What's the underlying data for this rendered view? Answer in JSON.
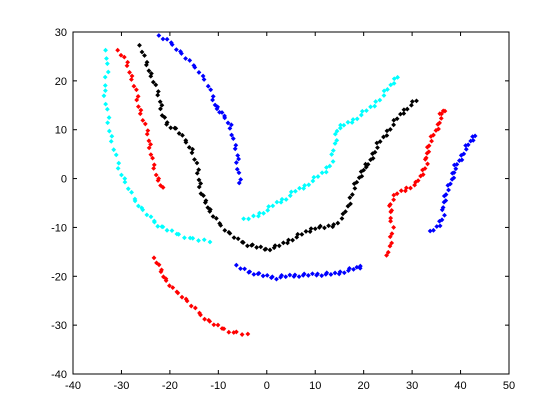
{
  "chart_data": {
    "type": "scatter",
    "title": "",
    "xlabel": "",
    "ylabel": "",
    "xlim": [
      -40,
      50
    ],
    "ylim": [
      -40,
      30
    ],
    "xticks": [
      -40,
      -30,
      -20,
      -10,
      0,
      10,
      20,
      30,
      40,
      50
    ],
    "yticks": [
      -40,
      -30,
      -20,
      -10,
      0,
      10,
      20,
      30
    ],
    "grid": false,
    "legend": "none",
    "marker": "diamond",
    "series": [
      {
        "color": "#00ffff",
        "points": [
          [
            -33,
            26
          ],
          [
            -33,
            22
          ],
          [
            -33.5,
            18
          ],
          [
            -33,
            14
          ],
          [
            -32.5,
            10
          ],
          [
            -31.5,
            6
          ],
          [
            -30.5,
            2
          ],
          [
            -29,
            -1
          ],
          [
            -27.5,
            -4
          ],
          [
            -26,
            -6
          ],
          [
            -24,
            -8
          ],
          [
            -22.5,
            -9.5
          ],
          [
            -20.5,
            -10.5
          ],
          [
            -18,
            -11.5
          ],
          [
            -15,
            -12.5
          ],
          [
            -12,
            -12.8
          ]
        ]
      },
      {
        "color": "#00ffff",
        "points": [
          [
            -4.5,
            -8.5
          ],
          [
            -2,
            -7.5
          ],
          [
            0,
            -6.5
          ],
          [
            2,
            -5
          ],
          [
            4,
            -4
          ],
          [
            6,
            -2.5
          ],
          [
            8,
            -1.5
          ],
          [
            10,
            0
          ],
          [
            12,
            1.5
          ],
          [
            13.5,
            3.5
          ],
          [
            14,
            7
          ],
          [
            14.5,
            10
          ],
          [
            16,
            11
          ],
          [
            18,
            12
          ],
          [
            20,
            13.5
          ],
          [
            22,
            15
          ],
          [
            24,
            17
          ],
          [
            25.5,
            19
          ],
          [
            27,
            21
          ]
        ]
      },
      {
        "color": "#ff0000",
        "points": [
          [
            -30.5,
            26
          ],
          [
            -29,
            24
          ],
          [
            -28,
            21
          ],
          [
            -27,
            18
          ],
          [
            -26.5,
            15
          ],
          [
            -25.5,
            12
          ],
          [
            -24.5,
            9
          ],
          [
            -24,
            6
          ],
          [
            -23.5,
            3
          ],
          [
            -22.5,
            0
          ],
          [
            -21.5,
            -2
          ]
        ]
      },
      {
        "color": "#ff0000",
        "points": [
          [
            -23,
            -16.5
          ],
          [
            -22,
            -18.5
          ],
          [
            -21,
            -20.5
          ],
          [
            -19.5,
            -22.5
          ],
          [
            -17.5,
            -24
          ],
          [
            -15.5,
            -26
          ],
          [
            -13.5,
            -28
          ],
          [
            -11.5,
            -29.5
          ],
          [
            -9.5,
            -30.5
          ],
          [
            -7,
            -31.5
          ],
          [
            -4,
            -32
          ]
        ]
      },
      {
        "color": "#ff0000",
        "points": [
          [
            25,
            -16
          ],
          [
            25.5,
            -13
          ],
          [
            26,
            -10
          ],
          [
            25.5,
            -7
          ],
          [
            25.5,
            -5
          ],
          [
            27,
            -3
          ],
          [
            29,
            -2
          ],
          [
            31,
            -1
          ],
          [
            32,
            1
          ],
          [
            33,
            3
          ],
          [
            33,
            5
          ],
          [
            33.5,
            7
          ],
          [
            34.5,
            9
          ],
          [
            35.5,
            11
          ],
          [
            36,
            13
          ],
          [
            36.5,
            14
          ]
        ]
      },
      {
        "color": "#000000",
        "points": [
          [
            -26,
            27
          ],
          [
            -25,
            24
          ],
          [
            -24,
            21.5
          ],
          [
            -23,
            19
          ],
          [
            -22,
            16
          ],
          [
            -21.5,
            13
          ],
          [
            -20.5,
            11
          ],
          [
            -18.5,
            10
          ],
          [
            -17,
            8
          ],
          [
            -15.5,
            6
          ],
          [
            -14.5,
            3
          ],
          [
            -14,
            0
          ],
          [
            -13.5,
            -3
          ],
          [
            -12.5,
            -5
          ],
          [
            -11.5,
            -7
          ],
          [
            -10,
            -9
          ],
          [
            -8,
            -11
          ],
          [
            -6,
            -12.5
          ],
          [
            -4,
            -13.5
          ],
          [
            -2,
            -14
          ],
          [
            0,
            -14.5
          ],
          [
            2,
            -14
          ],
          [
            4,
            -13
          ],
          [
            6,
            -12
          ],
          [
            8,
            -11
          ],
          [
            10,
            -10
          ],
          [
            12,
            -10
          ],
          [
            14,
            -9.5
          ],
          [
            16,
            -7.5
          ],
          [
            17,
            -5
          ],
          [
            18,
            -2
          ],
          [
            19,
            0
          ],
          [
            20,
            2
          ],
          [
            21,
            3
          ],
          [
            22,
            5
          ],
          [
            23,
            7
          ],
          [
            24.5,
            9
          ],
          [
            26,
            11
          ],
          [
            27.5,
            13
          ],
          [
            29,
            14.5
          ],
          [
            31,
            16
          ]
        ]
      },
      {
        "color": "#0000ff",
        "points": [
          [
            -22,
            29
          ],
          [
            -20,
            28
          ],
          [
            -18,
            26
          ],
          [
            -16,
            24
          ],
          [
            -14,
            22
          ],
          [
            -12,
            19
          ],
          [
            -11,
            16
          ],
          [
            -10,
            14
          ],
          [
            -9,
            13
          ],
          [
            -7.5,
            11
          ],
          [
            -7,
            8
          ],
          [
            -6,
            5
          ],
          [
            -6,
            2
          ],
          [
            -5.5,
            -1
          ]
        ]
      },
      {
        "color": "#0000ff",
        "points": [
          [
            -6,
            -18
          ],
          [
            -4,
            -19
          ],
          [
            -2,
            -19.5
          ],
          [
            0,
            -20
          ],
          [
            2,
            -20.3
          ],
          [
            4,
            -20
          ],
          [
            6,
            -19.8
          ],
          [
            8,
            -19.8
          ],
          [
            10,
            -19.6
          ],
          [
            12,
            -19.6
          ],
          [
            14,
            -19.5
          ],
          [
            16,
            -19
          ],
          [
            18,
            -18.5
          ],
          [
            19.5,
            -18
          ]
        ]
      },
      {
        "color": "#0000ff",
        "points": [
          [
            34,
            -11
          ],
          [
            35.5,
            -9.5
          ],
          [
            36.5,
            -7.5
          ],
          [
            36.5,
            -5
          ],
          [
            37,
            -3
          ],
          [
            38,
            -1
          ],
          [
            38.5,
            1
          ],
          [
            39,
            2.5
          ],
          [
            40,
            4
          ],
          [
            41,
            6
          ],
          [
            42,
            7.5
          ],
          [
            43,
            9
          ]
        ]
      }
    ]
  }
}
